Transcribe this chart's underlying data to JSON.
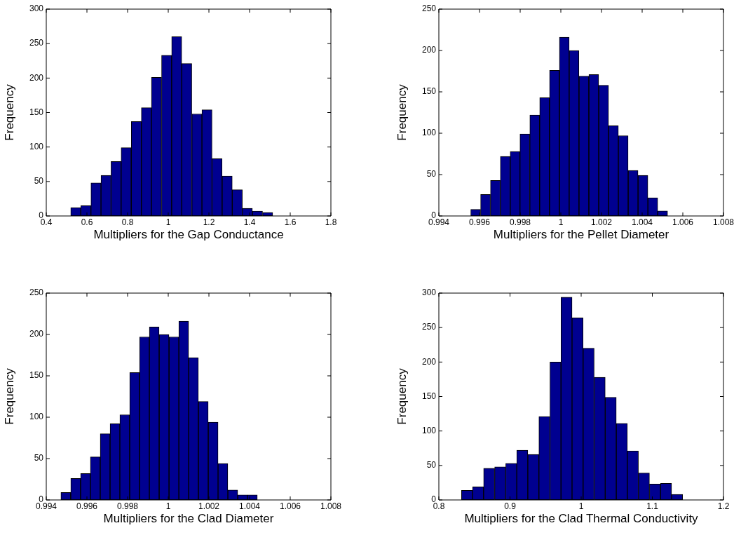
{
  "chart_data": [
    {
      "type": "histogram",
      "xlabel": "Multipliers for the Gap Conductance",
      "ylabel": "Frequency",
      "color": "#000090",
      "bins": [
        0.52,
        0.57,
        0.62,
        0.669,
        0.719,
        0.768,
        0.818,
        0.868,
        0.917,
        0.967,
        1.017,
        1.066,
        1.116,
        1.166,
        1.215,
        1.265,
        1.315,
        1.364,
        1.414,
        1.464,
        1.514
      ],
      "values": [
        12,
        15,
        48,
        59,
        79,
        99,
        137,
        157,
        201,
        233,
        260,
        221,
        148,
        154,
        83,
        58,
        38,
        11,
        7,
        5
      ],
      "xlim": [
        0.4,
        1.8
      ],
      "xticks": [
        0.4,
        0.6,
        0.8,
        1,
        1.2,
        1.4,
        1.6,
        1.8
      ],
      "ylim": [
        0,
        300
      ],
      "yticks": [
        0,
        50,
        100,
        150,
        200,
        250,
        300
      ]
    },
    {
      "type": "histogram",
      "xlabel": "Multipliers for the Pellet Diameter",
      "ylabel": "Frequency",
      "color": "#000090",
      "bins": [
        0.99557,
        0.99605,
        0.99654,
        0.99702,
        0.99751,
        0.99799,
        0.99847,
        0.99896,
        0.99944,
        0.99993,
        1.00041,
        1.00089,
        1.00138,
        1.00186,
        1.00235,
        1.00283,
        1.00331,
        1.0038,
        1.00428,
        1.00477,
        1.00525
      ],
      "values": [
        8,
        26,
        43,
        72,
        78,
        99,
        122,
        143,
        176,
        216,
        200,
        169,
        171,
        158,
        109,
        97,
        55,
        49,
        22,
        6
      ],
      "xlim": [
        0.994,
        1.008
      ],
      "xticks": [
        0.994,
        0.996,
        0.998,
        1,
        1.002,
        1.004,
        1.006,
        1.008
      ],
      "ylim": [
        0,
        250
      ],
      "yticks": [
        0,
        50,
        100,
        150,
        200,
        250
      ]
    },
    {
      "type": "histogram",
      "xlabel": "Multipliers for the Clad Diameter",
      "ylabel": "Frequency",
      "color": "#000090",
      "bins": [
        0.99472,
        0.9952,
        0.99569,
        0.99617,
        0.99665,
        0.99714,
        0.99762,
        0.9981,
        0.99859,
        0.99907,
        0.99955,
        1.00004,
        1.00052,
        1.001,
        1.00148,
        1.00197,
        1.00245,
        1.00293,
        1.00342,
        1.0039,
        1.00438
      ],
      "values": [
        9,
        26,
        32,
        52,
        80,
        92,
        103,
        154,
        197,
        209,
        200,
        197,
        216,
        172,
        119,
        94,
        44,
        12,
        6,
        6
      ],
      "xlim": [
        0.994,
        1.008
      ],
      "xticks": [
        0.994,
        0.996,
        0.998,
        1,
        1.002,
        1.004,
        1.006,
        1.008
      ],
      "ylim": [
        0,
        250
      ],
      "yticks": [
        0,
        50,
        100,
        150,
        200,
        250
      ]
    },
    {
      "type": "histogram",
      "xlabel": "Multipliers for the Clad Thermal Conductivity",
      "ylabel": "Frequency",
      "color": "#000090",
      "bins": [
        0.8318,
        0.8473,
        0.8629,
        0.8784,
        0.894,
        0.9095,
        0.925,
        0.9406,
        0.9561,
        0.9717,
        0.9872,
        1.0027,
        1.0183,
        1.0338,
        1.0494,
        1.0649,
        1.0804,
        1.096,
        1.1115,
        1.1271,
        1.1426
      ],
      "values": [
        14,
        19,
        46,
        48,
        53,
        72,
        66,
        121,
        200,
        294,
        264,
        220,
        178,
        149,
        111,
        71,
        39,
        23,
        24,
        8
      ],
      "xlim": [
        0.8,
        1.2
      ],
      "xticks": [
        0.8,
        0.9,
        1,
        1.1,
        1.2
      ],
      "ylim": [
        0,
        300
      ],
      "yticks": [
        0,
        50,
        100,
        150,
        200,
        250,
        300
      ]
    }
  ]
}
